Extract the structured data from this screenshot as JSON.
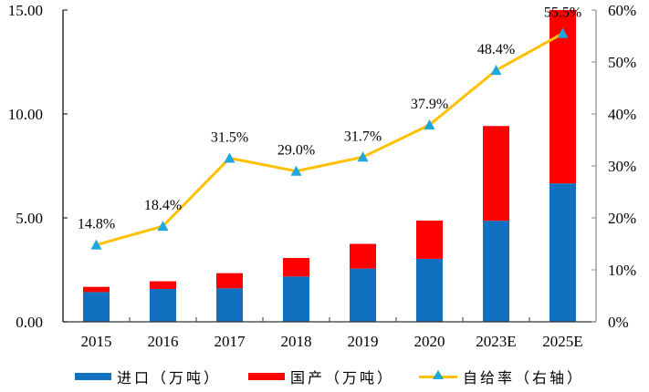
{
  "chart_data": {
    "type": "bar",
    "subtype": "stacked-bar-with-line",
    "title": "",
    "xlabel": "",
    "ylabel": "",
    "categories": [
      "2015",
      "2016",
      "2017",
      "2018",
      "2019",
      "2020",
      "2023E",
      "2025E"
    ],
    "series": [
      {
        "name": "进口（万吨）",
        "type": "bar",
        "axis": "left",
        "color": "#1170C0",
        "values": [
          1.43,
          1.58,
          1.61,
          2.18,
          2.56,
          3.03,
          4.86,
          6.66
        ]
      },
      {
        "name": "国产（万吨）",
        "type": "bar",
        "axis": "left",
        "color": "#FF0000",
        "values": [
          0.25,
          0.37,
          0.73,
          0.89,
          1.19,
          1.84,
          4.56,
          8.34
        ]
      },
      {
        "name": "自给率（右轴）",
        "type": "line",
        "axis": "right",
        "color": "#FFC000",
        "marker_color": "#1FA7E0",
        "marker": "triangle",
        "values": [
          14.8,
          18.4,
          31.5,
          29.0,
          31.7,
          37.9,
          48.4,
          55.5
        ],
        "labels": [
          "14.8%",
          "18.4%",
          "31.5%",
          "29.0%",
          "31.7%",
          "37.9%",
          "48.4%",
          "55.5%"
        ]
      }
    ],
    "y_left": {
      "ylim": [
        0,
        15
      ],
      "ticks": [
        0,
        5,
        10,
        15
      ],
      "tick_labels": [
        "0.00",
        "5.00",
        "10.00",
        "15.00"
      ]
    },
    "y_right": {
      "ylim": [
        0,
        60
      ],
      "ticks": [
        0,
        10,
        20,
        30,
        40,
        50,
        60
      ],
      "tick_labels": [
        "0%",
        "10%",
        "20%",
        "30%",
        "40%",
        "50%",
        "60%"
      ]
    },
    "grid": false,
    "legend_position": "bottom"
  },
  "legend": {
    "items": [
      {
        "label": "进口（万吨）",
        "kind": "bar",
        "color": "#1170C0"
      },
      {
        "label": "国产（万吨）",
        "kind": "bar",
        "color": "#FF0000"
      },
      {
        "label": "自给率（右轴）",
        "kind": "line",
        "color": "#FFC000"
      }
    ]
  }
}
